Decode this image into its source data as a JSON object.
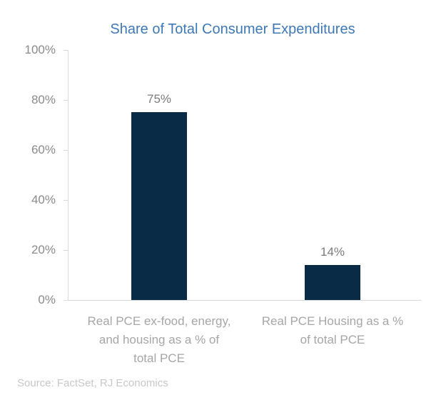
{
  "chart_data": {
    "type": "bar",
    "title": "Share of Total Consumer Expenditures",
    "categories": [
      "Real PCE ex-food, energy,\nand housing as a % of\ntotal PCE",
      "Real PCE Housing as a %\nof total PCE"
    ],
    "values": [
      75,
      14
    ],
    "value_labels": [
      "75%",
      "14%"
    ],
    "xlabel": "",
    "ylabel": "",
    "ylim": [
      0,
      100
    ],
    "yticks": [
      0,
      20,
      40,
      60,
      80,
      100
    ],
    "ytick_labels": [
      "0%",
      "20%",
      "40%",
      "60%",
      "80%",
      "100%"
    ],
    "grid": false,
    "legend": false
  },
  "colors": {
    "background": "#ffffff",
    "title": "#3e79b6",
    "bar": "#0a2b45",
    "axis_line": "#d9d9d9",
    "ytick_label": "#8a8a8a",
    "value_label": "#7b7b7b",
    "category_label": "#a6a6a6",
    "source": "#c8c8c8"
  },
  "source_note": "Source: FactSet, RJ Economics"
}
